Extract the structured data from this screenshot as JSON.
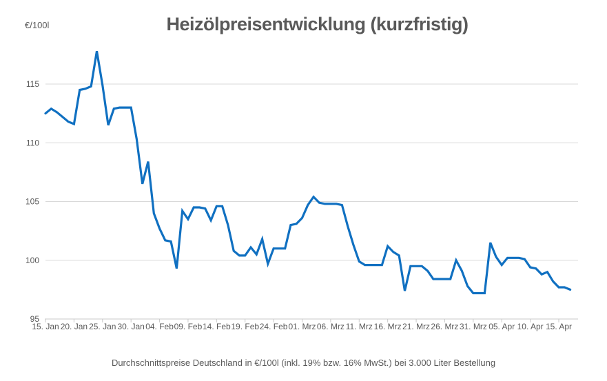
{
  "chart": {
    "title": "Heizölpreisentwicklung (kurzfristig)",
    "unit_label": "€/100l",
    "footnote": "Durchschnittspreise Deutschland in €/100l (inkl. 19% bzw. 16%  MwSt.) bei 3.000 Liter Bestellung"
  },
  "chart_data": {
    "type": "line",
    "title": "Heizölpreisentwicklung (kurzfristig)",
    "ylabel": "€/100l",
    "xlabel": "",
    "legend": "none",
    "grid": "horizontal",
    "ylim": [
      95,
      118.5
    ],
    "y_ticks": [
      95,
      100,
      105,
      110,
      115
    ],
    "x_tick_every": 5,
    "colors": {
      "line": "#1070C1",
      "grid": "#D9D9D9",
      "axis": "#C9C9C9",
      "text": "#595959"
    },
    "x": [
      "15. Jan",
      "16. Jan",
      "17. Jan",
      "18. Jan",
      "19. Jan",
      "20. Jan",
      "21. Jan",
      "22. Jan",
      "23. Jan",
      "24. Jan",
      "25. Jan",
      "26. Jan",
      "27. Jan",
      "28. Jan",
      "29. Jan",
      "30. Jan",
      "31. Jan",
      "01. Feb",
      "02. Feb",
      "03. Feb",
      "04. Feb",
      "05. Feb",
      "06. Feb",
      "07. Feb",
      "08. Feb",
      "09. Feb",
      "10. Feb",
      "11. Feb",
      "12. Feb",
      "13. Feb",
      "14. Feb",
      "15. Feb",
      "16. Feb",
      "17. Feb",
      "18. Feb",
      "19. Feb",
      "20. Feb",
      "21. Feb",
      "22. Feb",
      "23. Feb",
      "24. Feb",
      "25. Feb",
      "26. Feb",
      "27. Feb",
      "28. Feb",
      "01. Mrz",
      "02. Mrz",
      "03. Mrz",
      "04. Mrz",
      "05. Mrz",
      "06. Mrz",
      "07. Mrz",
      "08. Mrz",
      "09. Mrz",
      "10. Mrz",
      "11. Mrz",
      "12. Mrz",
      "13. Mrz",
      "14. Mrz",
      "15. Mrz",
      "16. Mrz",
      "17. Mrz",
      "18. Mrz",
      "19. Mrz",
      "20. Mrz",
      "21. Mrz",
      "22. Mrz",
      "23. Mrz",
      "24. Mrz",
      "25. Mrz",
      "26. Mrz",
      "27. Mrz",
      "28. Mrz",
      "29. Mrz",
      "30. Mrz",
      "31. Mrz",
      "01. Apr",
      "02. Apr",
      "03. Apr",
      "04. Apr",
      "05. Apr",
      "06. Apr",
      "07. Apr",
      "08. Apr",
      "09. Apr",
      "10. Apr",
      "11. Apr",
      "12. Apr",
      "13. Apr",
      "14. Apr",
      "15. Apr",
      "16. Apr",
      "17. Apr"
    ],
    "values": [
      112.5,
      112.9,
      112.6,
      112.2,
      111.8,
      111.6,
      114.5,
      114.6,
      114.8,
      117.8,
      114.9,
      111.5,
      112.9,
      113.0,
      113.0,
      113.0,
      110.3,
      106.5,
      108.4,
      104.0,
      102.7,
      101.7,
      101.6,
      99.3,
      104.2,
      103.5,
      104.5,
      104.5,
      104.4,
      103.4,
      104.6,
      104.6,
      103.0,
      100.8,
      100.4,
      100.4,
      101.1,
      100.5,
      101.8,
      99.7,
      101.0,
      101.0,
      101.0,
      103.0,
      103.1,
      103.6,
      104.7,
      105.4,
      104.9,
      104.8,
      104.8,
      104.8,
      104.7,
      102.9,
      101.3,
      99.9,
      99.6,
      99.6,
      99.6,
      99.6,
      101.2,
      100.7,
      100.4,
      97.4,
      99.5,
      99.5,
      99.5,
      99.1,
      98.4,
      98.4,
      98.4,
      98.4,
      100.0,
      99.1,
      97.8,
      97.2,
      97.2,
      97.2,
      101.5,
      100.3,
      99.6,
      100.2,
      100.2,
      100.2,
      100.1,
      99.4,
      99.3,
      98.8,
      99.0,
      98.2,
      97.7,
      97.7,
      97.5
    ]
  }
}
